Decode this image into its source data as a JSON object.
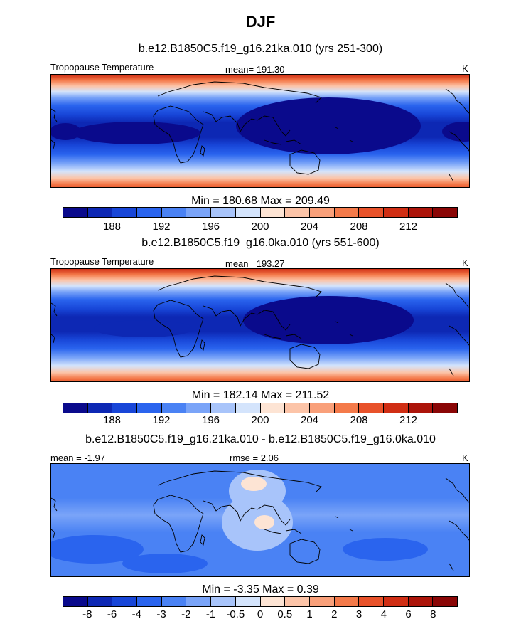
{
  "title": "DJF",
  "panels": [
    {
      "subtitle": "b.e12.B1850C5.f19_g16.21ka.010 (yrs 251-300)",
      "left_label": "Tropopause Temperature",
      "center_label": "mean= 191.30",
      "units": "K",
      "minmax": "Min = 180.68 Max = 209.49",
      "scale": "abs"
    },
    {
      "subtitle": "b.e12.B1850C5.f19_g16.0ka.010 (yrs 551-600)",
      "left_label": "Tropopause Temperature",
      "center_label": "mean= 193.27",
      "units": "K",
      "minmax": "Min = 182.14 Max = 211.52",
      "scale": "abs"
    },
    {
      "subtitle": "b.e12.B1850C5.f19_g16.21ka.010 - b.e12.B1850C5.f19_g16.0ka.010",
      "left_label": "mean =  -1.97",
      "center_label": "rmse =   2.06",
      "units": "K",
      "minmax": "Min =  -3.35 Max =   0.39",
      "scale": "diff"
    }
  ],
  "colorbars": {
    "abs": {
      "colors": [
        "#0a0a8c",
        "#0d28b4",
        "#1846d8",
        "#2a64ee",
        "#4a82f4",
        "#7aa4f8",
        "#a8c4fa",
        "#d4e4fc",
        "#fde4d4",
        "#fcc4a8",
        "#f9a07a",
        "#f47a4a",
        "#e8522a",
        "#d02e14",
        "#ac140a",
        "#8a0606"
      ],
      "tick_labels": [
        "188",
        "192",
        "196",
        "200",
        "204",
        "208",
        "212"
      ],
      "tick_positions": [
        2,
        4,
        6,
        8,
        10,
        12,
        14
      ]
    },
    "diff": {
      "colors": [
        "#0a0a8c",
        "#0d28b4",
        "#1846d8",
        "#2a64ee",
        "#4a82f4",
        "#7aa4f8",
        "#a8c4fa",
        "#d4e4fc",
        "#fde4d4",
        "#fcc4a8",
        "#f9a07a",
        "#f47a4a",
        "#e8522a",
        "#d02e14",
        "#ac140a",
        "#8a0606"
      ],
      "tick_labels": [
        "-8",
        "-6",
        "-4",
        "-3",
        "-2",
        "-1",
        "-0.5",
        "0",
        "0.5",
        "1",
        "2",
        "3",
        "4",
        "6",
        "8"
      ],
      "tick_positions": [
        1,
        2,
        3,
        4,
        5,
        6,
        7,
        8,
        9,
        10,
        11,
        12,
        13,
        14,
        15
      ]
    }
  },
  "chart_data": [
    {
      "type": "heatmap",
      "title": "b.e12.B1850C5.f19_g16.21ka.010 (yrs 251-300)",
      "variable": "Tropopause Temperature",
      "units": "K",
      "mean": 191.3,
      "min": 180.68,
      "max": 209.49,
      "contour_levels": [
        186,
        188,
        190,
        192,
        194,
        196,
        198,
        200,
        202,
        204,
        206,
        208,
        210,
        212,
        214
      ]
    },
    {
      "type": "heatmap",
      "title": "b.e12.B1850C5.f19_g16.0ka.010 (yrs 551-600)",
      "variable": "Tropopause Temperature",
      "units": "K",
      "mean": 193.27,
      "min": 182.14,
      "max": 211.52,
      "contour_levels": [
        186,
        188,
        190,
        192,
        194,
        196,
        198,
        200,
        202,
        204,
        206,
        208,
        210,
        212,
        214
      ]
    },
    {
      "type": "heatmap",
      "title": "b.e12.B1850C5.f19_g16.21ka.010 - b.e12.B1850C5.f19_g16.0ka.010",
      "units": "K",
      "mean": -1.97,
      "rmse": 2.06,
      "min": -3.35,
      "max": 0.39,
      "contour_levels": [
        -8,
        -6,
        -4,
        -3,
        -2,
        -1,
        -0.5,
        0,
        0.5,
        1,
        2,
        3,
        4,
        6,
        8
      ]
    }
  ]
}
